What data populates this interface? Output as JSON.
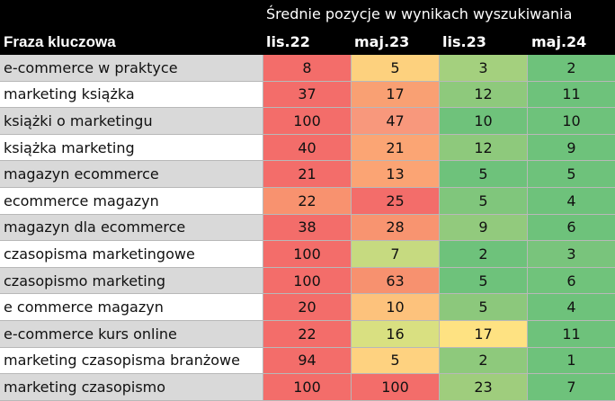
{
  "header": {
    "super_title": "Średnie pozycje w wynikach wyszukiwania",
    "keyword_col": "Fraza kluczowa",
    "periods": [
      "lis.22",
      "maj.23",
      "lis.23",
      "maj.24"
    ]
  },
  "rows": [
    {
      "keyword": "e-commerce w praktyce",
      "values": [
        "8",
        "5",
        "3",
        "2"
      ],
      "colors": [
        "#f36d6a",
        "#fdd17e",
        "#a4d07e",
        "#6ec27b"
      ]
    },
    {
      "keyword": "marketing książka",
      "values": [
        "37",
        "17",
        "12",
        "11"
      ],
      "colors": [
        "#f36d6a",
        "#f9a073",
        "#8ec97c",
        "#6ec27b"
      ]
    },
    {
      "keyword": "książki o marketingu",
      "values": [
        "100",
        "47",
        "10",
        "10"
      ],
      "colors": [
        "#f36d6a",
        "#f8987c",
        "#6fc27b",
        "#6ec27b"
      ]
    },
    {
      "keyword": "książka marketing",
      "values": [
        "40",
        "21",
        "12",
        "9"
      ],
      "colors": [
        "#f36d6a",
        "#fba574",
        "#8ec97c",
        "#6ec27b"
      ]
    },
    {
      "keyword": "magazyn ecommerce",
      "values": [
        "21",
        "13",
        "5",
        "5"
      ],
      "colors": [
        "#f36d6a",
        "#fba474",
        "#6ec27b",
        "#6ec27b"
      ]
    },
    {
      "keyword": "ecommerce magazyn",
      "values": [
        "22",
        "25",
        "5",
        "4"
      ],
      "colors": [
        "#f8926f",
        "#f36d6a",
        "#80c67c",
        "#6ec27b"
      ]
    },
    {
      "keyword": "magazyn dla ecommerce",
      "values": [
        "38",
        "28",
        "9",
        "6"
      ],
      "colors": [
        "#f36d6a",
        "#f89470",
        "#92ca7d",
        "#6ec27b"
      ]
    },
    {
      "keyword": "czasopisma marketingowe",
      "values": [
        "100",
        "7",
        "2",
        "3"
      ],
      "colors": [
        "#f36d6a",
        "#c6da80",
        "#6ec27b",
        "#79c47c"
      ]
    },
    {
      "keyword": "czasopismo marketing",
      "values": [
        "100",
        "63",
        "5",
        "6"
      ],
      "colors": [
        "#f36d6a",
        "#f7916f",
        "#6ec27b",
        "#70c37b"
      ]
    },
    {
      "keyword": "e commerce magazyn",
      "values": [
        "20",
        "10",
        "5",
        "4"
      ],
      "colors": [
        "#f36d6a",
        "#fdc27c",
        "#8cc87c",
        "#6ec27b"
      ]
    },
    {
      "keyword": "e-commerce kurs online",
      "values": [
        "22",
        "16",
        "17",
        "11"
      ],
      "colors": [
        "#f36d6a",
        "#d9e081",
        "#fee282",
        "#6ec27b"
      ]
    },
    {
      "keyword": "marketing czasopisma branżowe",
      "values": [
        "94",
        "5",
        "2",
        "1"
      ],
      "colors": [
        "#f36d6a",
        "#fed280",
        "#8ec97c",
        "#6ec27b"
      ]
    },
    {
      "keyword": "marketing czasopismo",
      "values": [
        "100",
        "100",
        "23",
        "7"
      ],
      "colors": [
        "#f36d6a",
        "#f36d6a",
        "#9fcd7d",
        "#6ec27b"
      ]
    }
  ]
}
